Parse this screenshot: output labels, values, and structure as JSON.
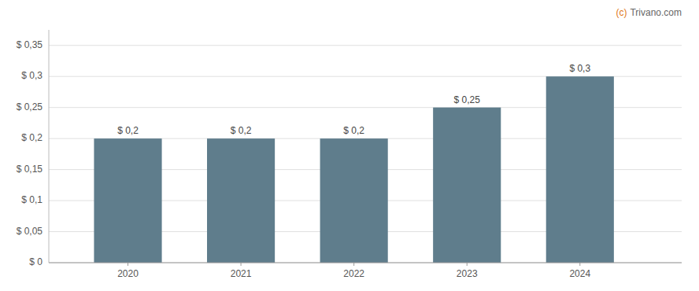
{
  "chart_data": {
    "type": "bar",
    "x": [
      2020,
      2021,
      2022,
      2023,
      2024
    ],
    "values": [
      0.2,
      0.2,
      0.2,
      0.25,
      0.3
    ],
    "value_labels": [
      "$ 0,2",
      "$ 0,2",
      "$ 0,2",
      "$ 0,25",
      "$ 0,3"
    ],
    "data_labels": true,
    "color": "#5f7d8c",
    "xlim": [
      2019.3,
      2024.9
    ],
    "xticks": [
      2020,
      2021,
      2022,
      2023,
      2024
    ],
    "ylim": [
      0,
      0.375
    ],
    "yticks": [
      {
        "value": 0,
        "label": "$ 0"
      },
      {
        "value": 0.05,
        "label": "$ 0,05"
      },
      {
        "value": 0.1,
        "label": "$ 0,1"
      },
      {
        "value": 0.15,
        "label": "$ 0,15"
      },
      {
        "value": 0.2,
        "label": "$ 0,2"
      },
      {
        "value": 0.25,
        "label": "$ 0,25"
      },
      {
        "value": 0.3,
        "label": "$ 0,3"
      },
      {
        "value": 0.35,
        "label": "$ 0,35"
      }
    ],
    "grid": true,
    "annotations": [
      {
        "text": "(c)",
        "color": "#e07820"
      },
      {
        "text": "Trivano.com",
        "color": "#666666"
      }
    ]
  }
}
